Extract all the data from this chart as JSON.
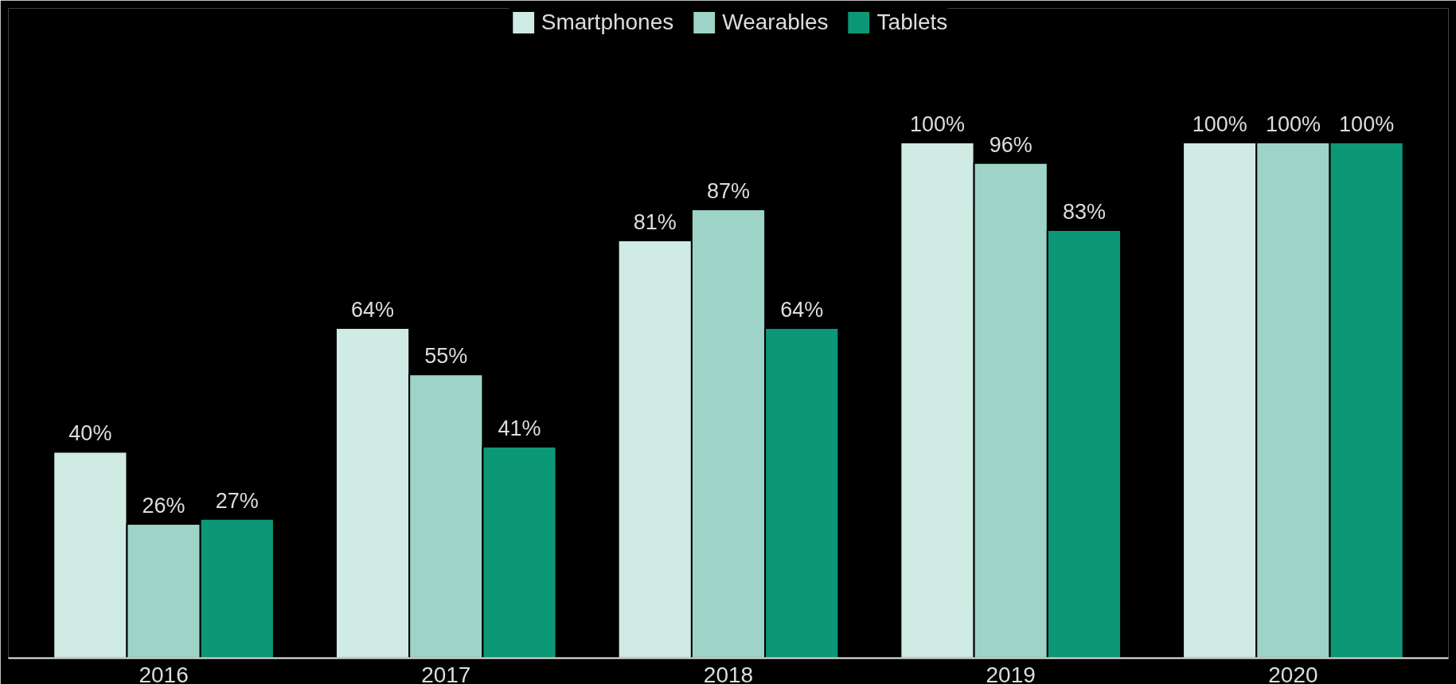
{
  "chart_data": {
    "type": "bar",
    "categories": [
      "2016",
      "2017",
      "2018",
      "2019",
      "2020"
    ],
    "series": [
      {
        "name": "Smartphones",
        "color": "#d0ebe3",
        "values": [
          40,
          64,
          81,
          100,
          100
        ],
        "value_labels": [
          "40%",
          "64%",
          "81%",
          "100%",
          "100%"
        ]
      },
      {
        "name": "Wearables",
        "color": "#9dd4c7",
        "values": [
          26,
          55,
          87,
          96,
          100
        ],
        "value_labels": [
          "26%",
          "55%",
          "87%",
          "96%",
          "100%"
        ]
      },
      {
        "name": "Tablets",
        "color": "#0c9776",
        "values": [
          27,
          41,
          64,
          83,
          100
        ],
        "value_labels": [
          "27%",
          "41%",
          "64%",
          "83%",
          "100%"
        ]
      }
    ],
    "legend": "top",
    "grid": false
  }
}
